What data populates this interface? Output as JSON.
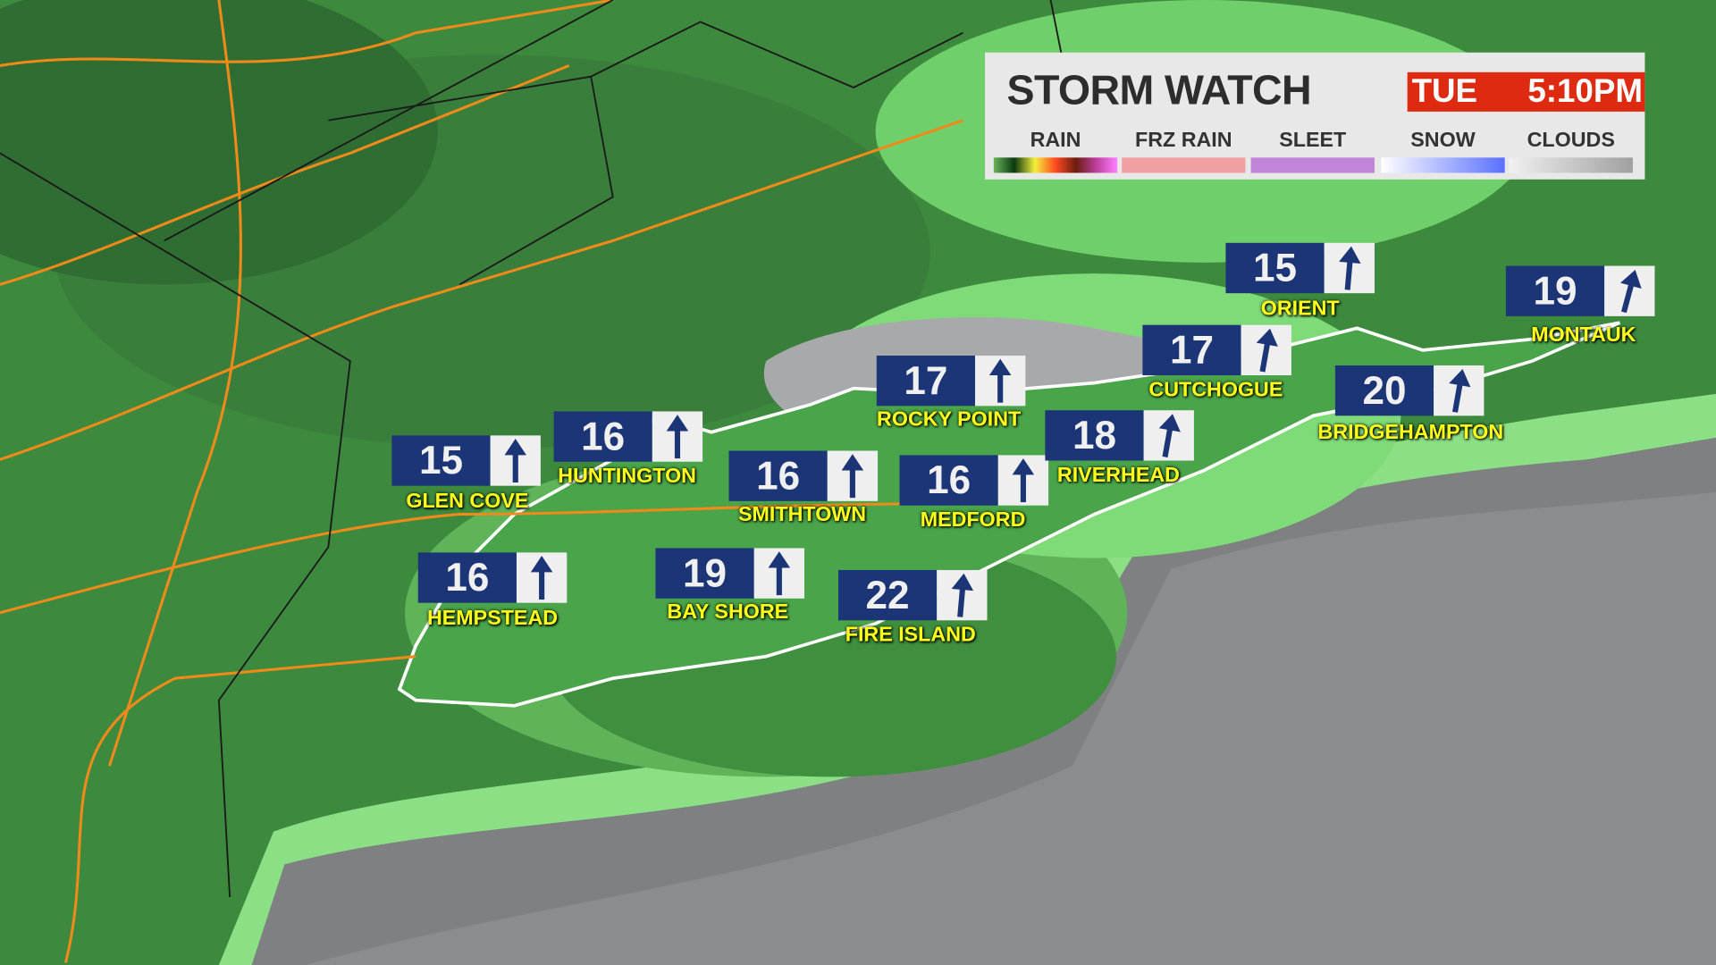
{
  "header": {
    "title": "STORM WATCH",
    "day": "TUE",
    "time": "5:10PM"
  },
  "legend": [
    {
      "label": "RAIN",
      "gradient": [
        "#6bb35a",
        "#0b3a10",
        "#f5ee3a",
        "#ff4a20",
        "#6a1c10",
        "#c040a0",
        "#ff80ff"
      ]
    },
    {
      "label": "FRZ RAIN",
      "gradient": [
        "#f0a0a0",
        "#f0a0a0"
      ]
    },
    {
      "label": "SLEET",
      "gradient": [
        "#c085d8",
        "#c085d8"
      ]
    },
    {
      "label": "SNOW",
      "gradient": [
        "#ffffff",
        "#5a70ff"
      ]
    },
    {
      "label": "CLOUDS",
      "gradient": [
        "#f0f0f0",
        "#a0a0a0"
      ]
    }
  ],
  "stations": [
    {
      "name": "GLEN COVE",
      "value": "15",
      "arrow_deg": 0
    },
    {
      "name": "HUNTINGTON",
      "value": "16",
      "arrow_deg": 0
    },
    {
      "name": "SMITHTOWN",
      "value": "16",
      "arrow_deg": 0
    },
    {
      "name": "ROCKY POINT",
      "value": "17",
      "arrow_deg": 0
    },
    {
      "name": "MEDFORD",
      "value": "16",
      "arrow_deg": 0
    },
    {
      "name": "HEMPSTEAD",
      "value": "16",
      "arrow_deg": 0
    },
    {
      "name": "BAY SHORE",
      "value": "19",
      "arrow_deg": 0
    },
    {
      "name": "FIRE ISLAND",
      "value": "22",
      "arrow_deg": 5
    },
    {
      "name": "RIVERHEAD",
      "value": "18",
      "arrow_deg": 10
    },
    {
      "name": "CUTCHOGUE",
      "value": "17",
      "arrow_deg": 10
    },
    {
      "name": "ORIENT",
      "value": "15",
      "arrow_deg": 5
    },
    {
      "name": "BRIDGEHAMPTON",
      "value": "20",
      "arrow_deg": 10
    },
    {
      "name": "MONTAUK",
      "value": "19",
      "arrow_deg": 15
    }
  ],
  "colors": {
    "box": "#1b3577",
    "label": "#ffff1a",
    "time_bg": "#de2a10"
  }
}
